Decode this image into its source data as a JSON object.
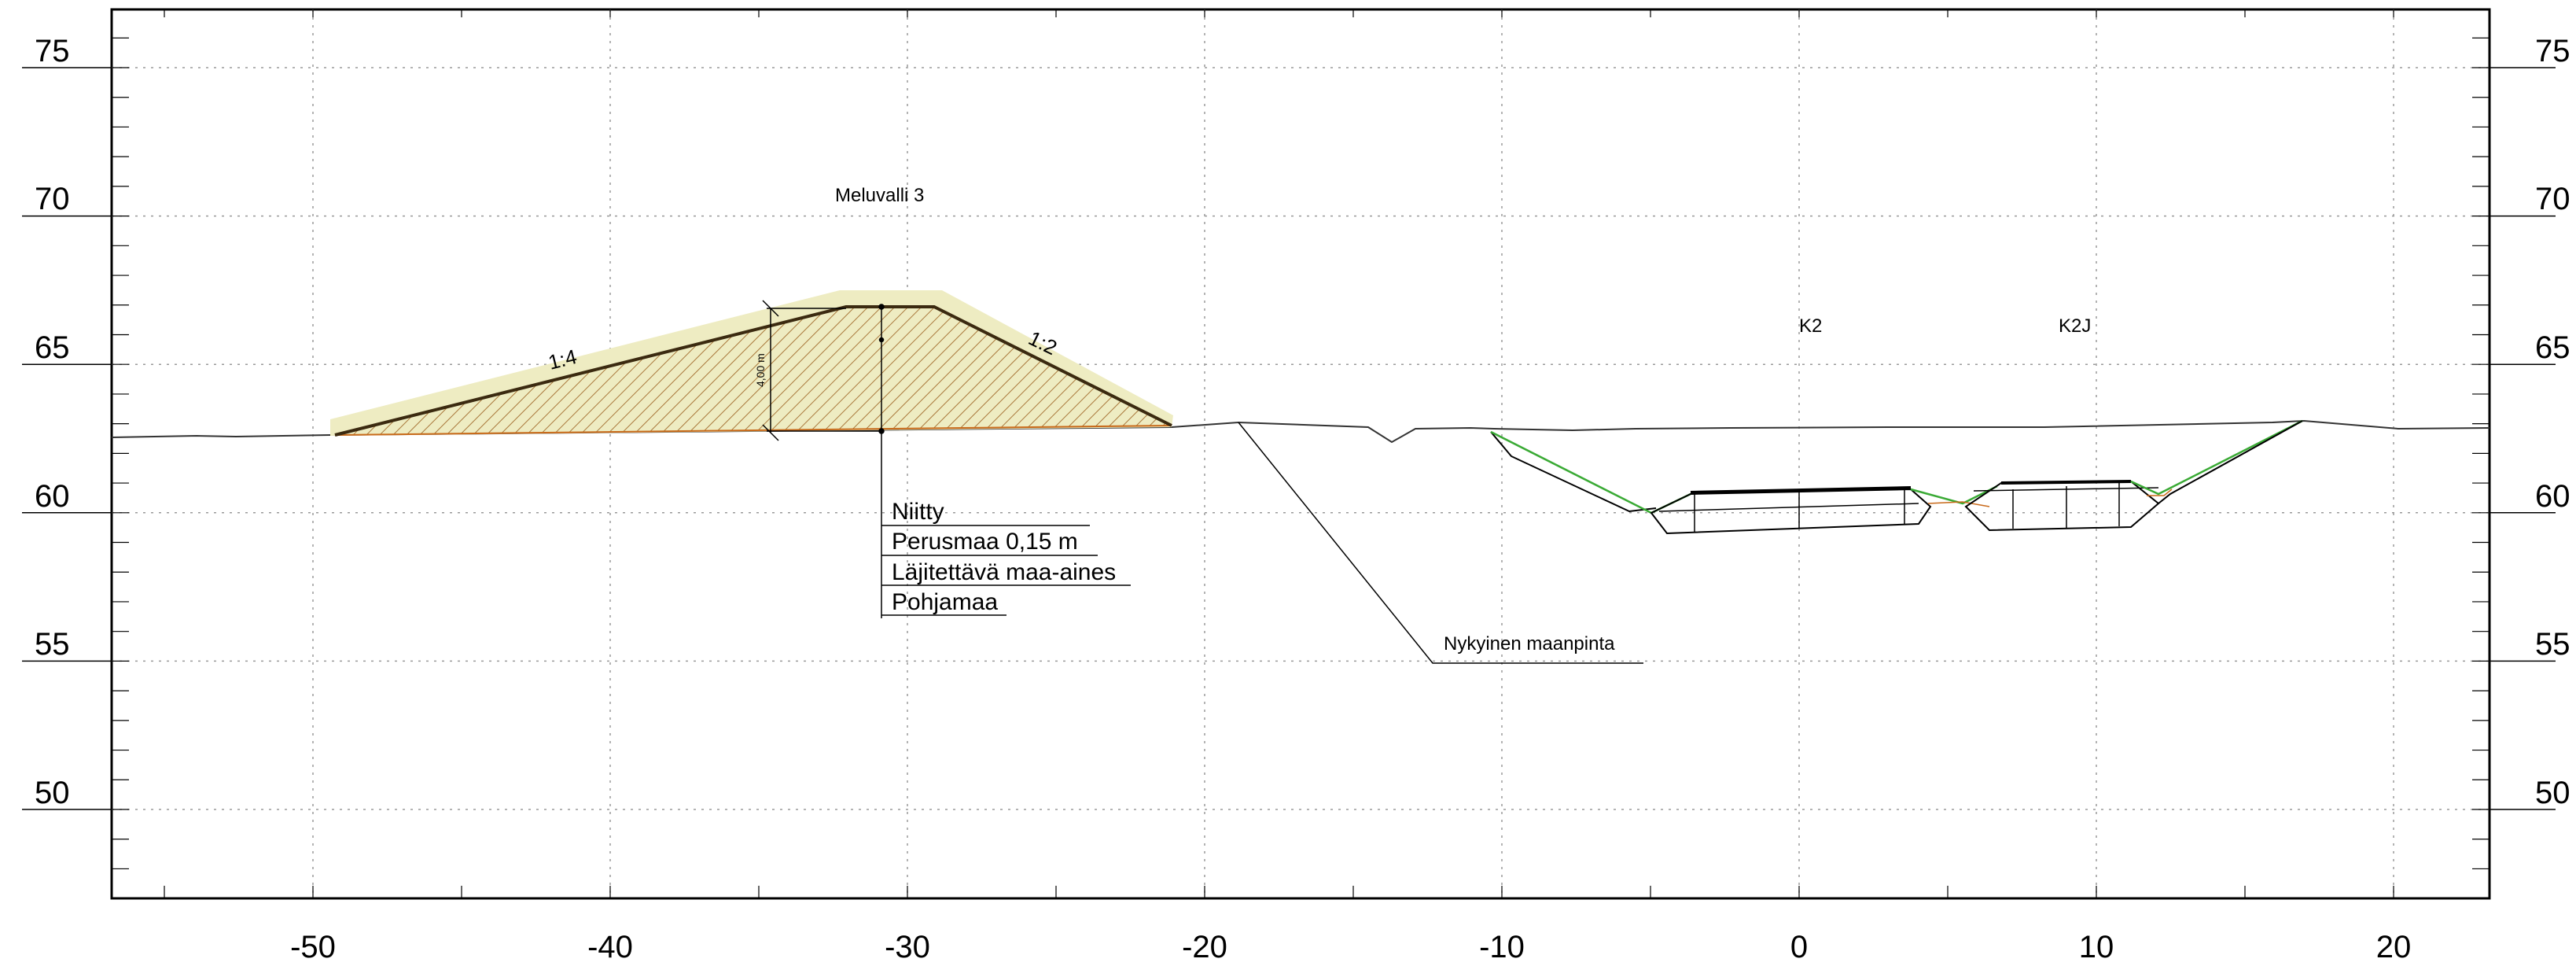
{
  "title": "Meluvalli 3",
  "axis": {
    "x_ticks": [
      "-50",
      "-40",
      "-30",
      "-20",
      "-10",
      "0",
      "10",
      "20"
    ],
    "y_ticks": [
      "75",
      "70",
      "65",
      "60",
      "55",
      "50"
    ]
  },
  "labels": {
    "slope_left": "1:4",
    "slope_right": "1:2",
    "height_dim": "4,00 m",
    "k2": "K2",
    "k2j": "K2J",
    "existing_ground": "Nykyinen maanpinta"
  },
  "layers": [
    "Niitty",
    "Perusmaa 0,15 m",
    "Läjitettävä maa-aines",
    "Pohjamaa"
  ],
  "colors": {
    "fill_embankment": "#eeecc2",
    "hatch": "#a9783b",
    "grid": "#9a9a9a",
    "green_line": "#3aaa35",
    "orange_line": "#c86a1a"
  }
}
